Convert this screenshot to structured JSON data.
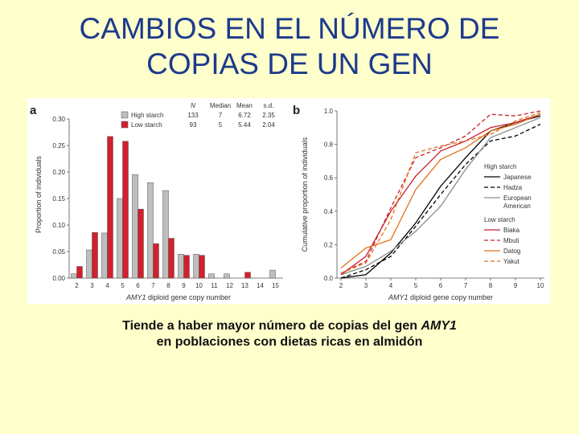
{
  "title": {
    "line1": "CAMBIOS EN EL NÚMERO DE",
    "line2": "COPIAS DE UN GEN"
  },
  "caption": {
    "part1": "Tiende a haber mayor número de copias del gen ",
    "gene": "AMY1",
    "part2": "en poblaciones con dietas ricas en almidón"
  },
  "colors": {
    "high_starch": "#BEBEBE",
    "low_starch": "#D2202E",
    "panel_bg": "#FFFFFF",
    "title": "#1C3A8C"
  },
  "chart_data": [
    {
      "panel_label": "a",
      "type": "bar",
      "xlabel_gene": "AMY1",
      "xlabel_rest": " diploid gene copy number",
      "ylabel": "Proportion of individuals",
      "ylim": [
        0,
        0.3
      ],
      "yticks": [
        "0.00",
        "0.05",
        "0.10",
        "0.15",
        "0.20",
        "0.25",
        "0.30"
      ],
      "categories": [
        "2",
        "3",
        "4",
        "5",
        "6",
        "7",
        "8",
        "9",
        "10",
        "11",
        "12",
        "13",
        "14",
        "15"
      ],
      "table_headers": [
        "N",
        "Median",
        "Mean",
        "s.d."
      ],
      "series": [
        {
          "name": "High starch",
          "color": "#BEBEBE",
          "stats": [
            "133",
            "7",
            "6.72",
            "2.35"
          ],
          "values": [
            0.008,
            0.053,
            0.085,
            0.15,
            0.195,
            0.18,
            0.165,
            0.045,
            0.045,
            0.008,
            0.008,
            0.0,
            0.0,
            0.015
          ]
        },
        {
          "name": "Low starch",
          "color": "#D2202E",
          "stats": [
            "93",
            "5",
            "5.44",
            "2.04"
          ],
          "values": [
            0.022,
            0.086,
            0.267,
            0.258,
            0.13,
            0.065,
            0.075,
            0.043,
            0.043,
            0.0,
            0.0,
            0.011,
            0.0,
            0.0
          ]
        }
      ]
    },
    {
      "panel_label": "b",
      "type": "line",
      "xlabel_gene": "AMY1",
      "xlabel_rest": " diploid gene copy number",
      "ylabel": "Cumulative proportion of individuals",
      "ylim": [
        0,
        1.0
      ],
      "xlim": [
        2,
        10
      ],
      "yticks": [
        "0.0",
        "0.2",
        "0.4",
        "0.6",
        "0.8",
        "1.0"
      ],
      "xticks": [
        "2",
        "3",
        "4",
        "5",
        "6",
        "7",
        "8",
        "9",
        "10"
      ],
      "legend_group_high": "High starch",
      "legend_group_low": "Low starch",
      "series": [
        {
          "name": "Japanese",
          "group": "high",
          "color": "#000000",
          "dash": "solid",
          "x": [
            2,
            3,
            4,
            5,
            6,
            7,
            8,
            9,
            10
          ],
          "y": [
            0.0,
            0.02,
            0.15,
            0.33,
            0.55,
            0.72,
            0.88,
            0.93,
            0.97
          ]
        },
        {
          "name": "Hadza",
          "group": "high",
          "color": "#000000",
          "dash": "dashed",
          "x": [
            2,
            3,
            4,
            5,
            6,
            7,
            8,
            9,
            10
          ],
          "y": [
            0.0,
            0.05,
            0.13,
            0.31,
            0.5,
            0.68,
            0.82,
            0.85,
            0.92
          ]
        },
        {
          "name": "European American",
          "group": "high",
          "color": "#8C8C8C",
          "dash": "solid",
          "x": [
            2,
            3,
            4,
            5,
            6,
            7,
            8,
            9,
            10
          ],
          "y": [
            0.02,
            0.07,
            0.16,
            0.28,
            0.43,
            0.65,
            0.84,
            0.9,
            0.96
          ]
        },
        {
          "name": "Biaka",
          "group": "low",
          "color": "#C8202A",
          "dash": "solid",
          "x": [
            2,
            3,
            4,
            5,
            6,
            7,
            8,
            9,
            10
          ],
          "y": [
            0.02,
            0.13,
            0.4,
            0.61,
            0.76,
            0.82,
            0.9,
            0.93,
            0.98
          ]
        },
        {
          "name": "Mbuti",
          "group": "low",
          "color": "#C8202A",
          "dash": "dashed",
          "x": [
            2,
            3,
            4,
            5,
            6,
            7,
            8,
            9,
            10
          ],
          "y": [
            0.03,
            0.1,
            0.42,
            0.72,
            0.78,
            0.85,
            0.98,
            0.97,
            1.0
          ]
        },
        {
          "name": "Datog",
          "group": "low",
          "color": "#E2711D",
          "dash": "solid",
          "x": [
            2,
            3,
            4,
            5,
            6,
            7,
            8,
            9,
            10
          ],
          "y": [
            0.06,
            0.18,
            0.23,
            0.53,
            0.71,
            0.78,
            0.88,
            0.92,
            0.98
          ]
        },
        {
          "name": "Yakut",
          "group": "low",
          "color": "#E2711D",
          "dash": "dashed",
          "x": [
            2,
            3,
            4,
            5,
            6,
            7,
            8,
            9,
            10
          ],
          "y": [
            0.03,
            0.09,
            0.35,
            0.75,
            0.79,
            0.82,
            0.86,
            0.94,
            0.99
          ]
        }
      ]
    }
  ]
}
